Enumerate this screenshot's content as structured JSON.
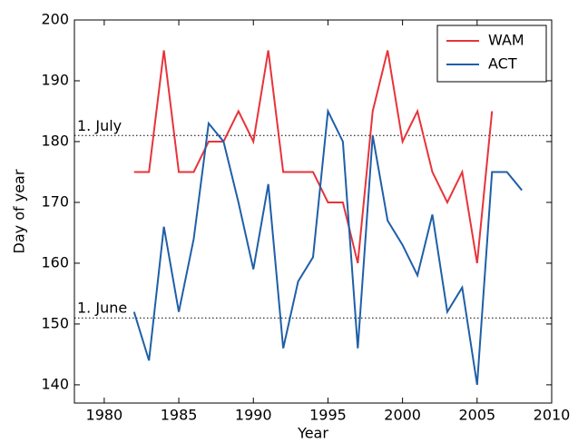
{
  "chart_data": {
    "type": "line",
    "x_label": "Year",
    "y_label": "Day of year",
    "x": [
      1982,
      1983,
      1984,
      1985,
      1986,
      1987,
      1988,
      1989,
      1990,
      1991,
      1992,
      1993,
      1994,
      1995,
      1996,
      1997,
      1998,
      1999,
      2000,
      2001,
      2002,
      2003,
      2004,
      2005,
      2006,
      2007,
      2008
    ],
    "series": [
      {
        "name": "WAM",
        "color": "#e8333a",
        "values": [
          175,
          175,
          195,
          175,
          175,
          180,
          180,
          185,
          180,
          195,
          175,
          175,
          175,
          170,
          170,
          160,
          185,
          195,
          180,
          185,
          175,
          170,
          175,
          160,
          185,
          null,
          null
        ]
      },
      {
        "name": "ACT",
        "color": "#1f5fa8",
        "values": [
          152,
          144,
          166,
          152,
          164,
          183,
          180,
          170,
          159,
          173,
          146,
          157,
          161,
          185,
          180,
          146,
          181,
          167,
          163,
          158,
          168,
          152,
          156,
          140,
          175,
          175,
          172
        ]
      }
    ],
    "xlim": [
      1978,
      2010
    ],
    "xticks": [
      1980,
      1985,
      1990,
      1995,
      2000,
      2005,
      2010
    ],
    "ylim": [
      137,
      200
    ],
    "yticks": [
      140,
      150,
      160,
      170,
      180,
      190,
      200
    ],
    "reference_lines": [
      {
        "value": 181,
        "label": "1. July"
      },
      {
        "value": 151,
        "label": "1. June"
      }
    ],
    "legend": "upper right"
  }
}
